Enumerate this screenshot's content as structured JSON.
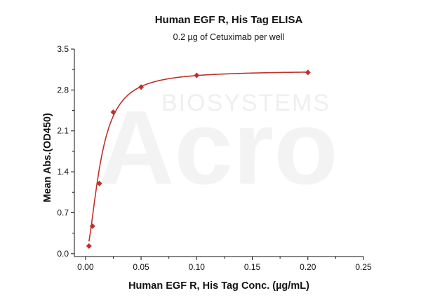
{
  "chart_data": {
    "type": "scatter",
    "title": "Human EGF R, His Tag ELISA",
    "subtitle": "0.2 µg of Cetuximab per well",
    "xlabel": "Human EGF R, His Tag Conc. (µg/mL)",
    "ylabel": "Mean Abs.(OD450)",
    "xlim": [
      -0.01,
      0.25
    ],
    "ylim": [
      -0.05,
      3.5
    ],
    "x_ticks": [
      0.0,
      0.05,
      0.1,
      0.15,
      0.2,
      0.25
    ],
    "x_tick_labels": [
      "0.00",
      "0.05",
      "0.10",
      "0.15",
      "0.20",
      "0.25"
    ],
    "y_ticks": [
      0.0,
      0.7,
      1.4,
      2.1,
      2.8,
      3.5
    ],
    "y_tick_labels": [
      "0.0",
      "0.7",
      "1.4",
      "2.1",
      "2.8",
      "3.5"
    ],
    "grid": false,
    "series": [
      {
        "color": "#c0302a",
        "marker": "diamond",
        "points": [
          {
            "x": 0.003125,
            "y": 0.13
          },
          {
            "x": 0.00625,
            "y": 0.47
          },
          {
            "x": 0.0125,
            "y": 1.2
          },
          {
            "x": 0.025,
            "y": 2.42
          },
          {
            "x": 0.05,
            "y": 2.85
          },
          {
            "x": 0.1,
            "y": 3.05
          },
          {
            "x": 0.2,
            "y": 3.1
          }
        ],
        "fit_curve": {
          "type": "4PL",
          "bottom": 0.0,
          "top": 3.13,
          "ec50": 0.0135,
          "hill": 1.8
        }
      }
    ],
    "watermark": "ACRO BIOSYSTEMS"
  }
}
